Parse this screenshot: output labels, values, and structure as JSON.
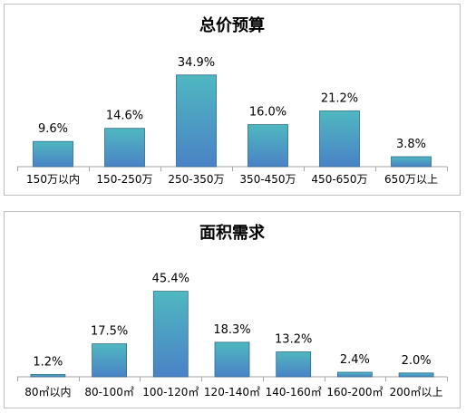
{
  "colors": {
    "bar_top": "#4fb8c0",
    "bar_bottom": "#4a82c6",
    "bar_stroke": "#2e6a8e",
    "axis": "#a6a6a6"
  },
  "chart_data": [
    {
      "id": "budget",
      "type": "bar",
      "title": "总价预算",
      "categories": [
        "150万以内",
        "150-250万",
        "250-350万",
        "350-450万",
        "450-650万",
        "650万以上"
      ],
      "values": [
        9.6,
        14.6,
        34.9,
        16.0,
        21.2,
        3.8
      ],
      "labels": [
        "9.6%",
        "14.6%",
        "34.9%",
        "16.0%",
        "21.2%",
        "3.8%"
      ],
      "unit": "%",
      "ylim": [
        0,
        40
      ],
      "grid": false,
      "legend": "none"
    },
    {
      "id": "area",
      "type": "bar",
      "title": "面积需求",
      "categories": [
        "80㎡以内",
        "80-100㎡",
        "100-120㎡",
        "120-140㎡",
        "140-160㎡",
        "160-200㎡",
        "200㎡以上"
      ],
      "values": [
        1.2,
        17.5,
        45.4,
        18.3,
        13.2,
        2.4,
        2.0
      ],
      "labels": [
        "1.2%",
        "17.5%",
        "45.4%",
        "18.3%",
        "13.2%",
        "2.4%",
        "2.0%"
      ],
      "unit": "%",
      "ylim": [
        0,
        50
      ],
      "grid": false,
      "legend": "none"
    }
  ]
}
